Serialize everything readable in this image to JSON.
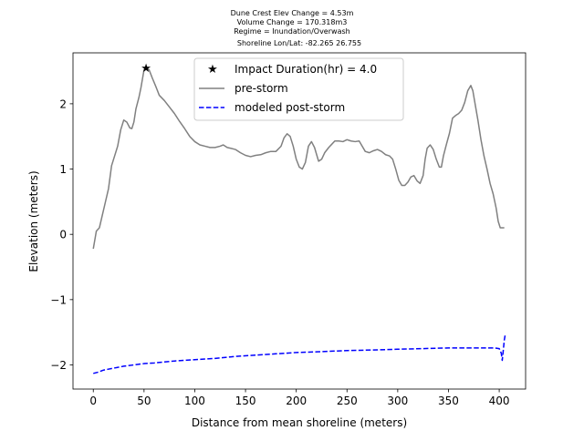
{
  "chart_data": {
    "type": "line",
    "title_lines": [
      "Dune Crest Elev Change = 4.53m",
      "Volume Change = 170.318m3",
      "Regime = Inundation/Overwash",
      "Shoreline Lon/Lat: -82.265 26.755"
    ],
    "xlabel": "Distance from mean shoreline (meters)",
    "ylabel": "Elevation (meters)",
    "xlim": [
      -20,
      426
    ],
    "ylim": [
      -2.37,
      2.78
    ],
    "xticks": [
      0,
      50,
      100,
      150,
      200,
      250,
      300,
      350,
      400
    ],
    "yticks": [
      -2,
      -1,
      0,
      1,
      2
    ],
    "grid": false,
    "legend_position": "top-center",
    "series": [
      {
        "name": "Impact Duration(hr) = 4.0",
        "style": "marker-star",
        "color": "#ff0000",
        "points": [
          [
            52,
            2.55
          ]
        ]
      },
      {
        "name": "pre-storm",
        "style": "solid",
        "color": "#808080",
        "points": [
          [
            0,
            -0.22
          ],
          [
            3,
            0.05
          ],
          [
            6,
            0.1
          ],
          [
            9,
            0.3
          ],
          [
            12,
            0.5
          ],
          [
            15,
            0.7
          ],
          [
            18,
            1.05
          ],
          [
            21,
            1.2
          ],
          [
            24,
            1.35
          ],
          [
            27,
            1.6
          ],
          [
            30,
            1.75
          ],
          [
            33,
            1.72
          ],
          [
            36,
            1.63
          ],
          [
            38,
            1.62
          ],
          [
            40,
            1.72
          ],
          [
            42,
            1.92
          ],
          [
            45,
            2.1
          ],
          [
            47,
            2.25
          ],
          [
            50,
            2.52
          ],
          [
            52,
            2.55
          ],
          [
            55,
            2.52
          ],
          [
            58,
            2.4
          ],
          [
            62,
            2.25
          ],
          [
            65,
            2.13
          ],
          [
            70,
            2.05
          ],
          [
            75,
            1.95
          ],
          [
            80,
            1.85
          ],
          [
            85,
            1.73
          ],
          [
            90,
            1.62
          ],
          [
            95,
            1.5
          ],
          [
            100,
            1.42
          ],
          [
            105,
            1.37
          ],
          [
            110,
            1.35
          ],
          [
            115,
            1.33
          ],
          [
            120,
            1.33
          ],
          [
            125,
            1.35
          ],
          [
            128,
            1.37
          ],
          [
            132,
            1.33
          ],
          [
            135,
            1.32
          ],
          [
            140,
            1.3
          ],
          [
            145,
            1.25
          ],
          [
            150,
            1.21
          ],
          [
            155,
            1.19
          ],
          [
            160,
            1.21
          ],
          [
            165,
            1.22
          ],
          [
            170,
            1.25
          ],
          [
            175,
            1.27
          ],
          [
            180,
            1.27
          ],
          [
            185,
            1.35
          ],
          [
            188,
            1.48
          ],
          [
            191,
            1.54
          ],
          [
            194,
            1.5
          ],
          [
            197,
            1.35
          ],
          [
            200,
            1.15
          ],
          [
            203,
            1.03
          ],
          [
            206,
            1.0
          ],
          [
            209,
            1.1
          ],
          [
            212,
            1.35
          ],
          [
            215,
            1.42
          ],
          [
            218,
            1.33
          ],
          [
            222,
            1.12
          ],
          [
            225,
            1.15
          ],
          [
            228,
            1.25
          ],
          [
            232,
            1.33
          ],
          [
            235,
            1.38
          ],
          [
            238,
            1.43
          ],
          [
            242,
            1.43
          ],
          [
            246,
            1.42
          ],
          [
            250,
            1.45
          ],
          [
            254,
            1.43
          ],
          [
            258,
            1.42
          ],
          [
            262,
            1.43
          ],
          [
            265,
            1.35
          ],
          [
            268,
            1.27
          ],
          [
            272,
            1.25
          ],
          [
            276,
            1.28
          ],
          [
            280,
            1.3
          ],
          [
            284,
            1.27
          ],
          [
            288,
            1.22
          ],
          [
            292,
            1.2
          ],
          [
            295,
            1.15
          ],
          [
            298,
            1.0
          ],
          [
            301,
            0.83
          ],
          [
            304,
            0.75
          ],
          [
            307,
            0.75
          ],
          [
            310,
            0.8
          ],
          [
            313,
            0.88
          ],
          [
            316,
            0.9
          ],
          [
            319,
            0.82
          ],
          [
            322,
            0.78
          ],
          [
            325,
            0.9
          ],
          [
            327,
            1.15
          ],
          [
            329,
            1.32
          ],
          [
            332,
            1.37
          ],
          [
            335,
            1.3
          ],
          [
            338,
            1.15
          ],
          [
            341,
            1.03
          ],
          [
            343,
            1.03
          ],
          [
            345,
            1.2
          ],
          [
            348,
            1.38
          ],
          [
            351,
            1.55
          ],
          [
            354,
            1.78
          ],
          [
            357,
            1.82
          ],
          [
            360,
            1.85
          ],
          [
            363,
            1.9
          ],
          [
            366,
            2.02
          ],
          [
            369,
            2.2
          ],
          [
            372,
            2.28
          ],
          [
            374,
            2.2
          ],
          [
            376,
            2.02
          ],
          [
            379,
            1.75
          ],
          [
            382,
            1.45
          ],
          [
            385,
            1.2
          ],
          [
            388,
            1.0
          ],
          [
            391,
            0.78
          ],
          [
            394,
            0.62
          ],
          [
            397,
            0.4
          ],
          [
            399,
            0.2
          ],
          [
            401,
            0.1
          ],
          [
            405,
            0.1
          ]
        ]
      },
      {
        "name": "modeled post-storm",
        "style": "dashed",
        "color": "#0000ff",
        "points": [
          [
            0,
            -2.13
          ],
          [
            5,
            -2.11
          ],
          [
            10,
            -2.08
          ],
          [
            20,
            -2.05
          ],
          [
            30,
            -2.02
          ],
          [
            40,
            -2.0
          ],
          [
            50,
            -1.98
          ],
          [
            60,
            -1.97
          ],
          [
            80,
            -1.94
          ],
          [
            100,
            -1.92
          ],
          [
            120,
            -1.9
          ],
          [
            140,
            -1.87
          ],
          [
            160,
            -1.85
          ],
          [
            180,
            -1.83
          ],
          [
            200,
            -1.81
          ],
          [
            220,
            -1.8
          ],
          [
            250,
            -1.78
          ],
          [
            280,
            -1.77
          ],
          [
            300,
            -1.76
          ],
          [
            325,
            -1.75
          ],
          [
            350,
            -1.74
          ],
          [
            375,
            -1.74
          ],
          [
            395,
            -1.74
          ],
          [
            400,
            -1.75
          ],
          [
            402,
            -1.82
          ],
          [
            403,
            -1.93
          ],
          [
            404,
            -1.78
          ],
          [
            405,
            -1.62
          ],
          [
            406,
            -1.53
          ]
        ]
      }
    ]
  }
}
